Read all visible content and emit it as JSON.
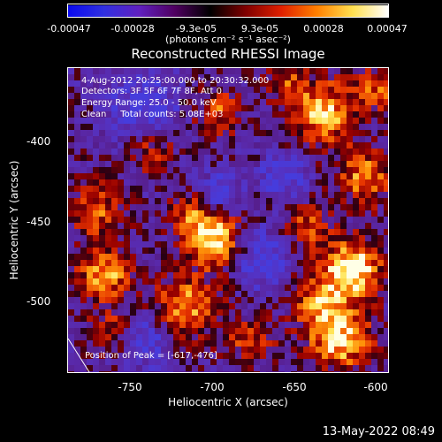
{
  "colorbar": {
    "ticks": [
      "-0.00047",
      "-0.00028",
      "-9.3e-05",
      "9.3e-05",
      "0.00028",
      "0.00047"
    ],
    "unit_label": "(photons cm⁻² s⁻¹ asec⁻²)",
    "gradient": [
      "#0a0af0",
      "#3030e0",
      "#6020c0",
      "#500060",
      "#000000",
      "#800000",
      "#e02000",
      "#ff8000",
      "#ffe050",
      "#ffffff"
    ]
  },
  "info": {
    "line1": "4-Aug-2012 20:25:00.000 to 20:30:32.000",
    "line2": "Detectors: 3F 5F 6F 7F 8F, Att 0",
    "line3": "Energy Range: 25.0 - 50.0 keV",
    "line4": "Clean     Total counts: 5.08E+03"
  },
  "peak_text": "Position of Peak = [-617,-476]",
  "timestamp": "13-May-2022 08:49",
  "chart_data": {
    "type": "heatmap",
    "title": "Reconstructed RHESSI Image",
    "xlabel": "Heliocentric X (arcsec)",
    "ylabel": "Heliocentric Y (arcsec)",
    "xlim": [
      -792,
      -596
    ],
    "ylim": [
      -540,
      -353
    ],
    "x_ticks": [
      "-750",
      "-700",
      "-650",
      "-600"
    ],
    "y_ticks": [
      "-400",
      "-450",
      "-500"
    ],
    "x_tick_values": [
      -750,
      -700,
      -650,
      -600
    ],
    "y_tick_values": [
      -400,
      -450,
      -500
    ],
    "color_range": [
      -0.00047,
      0.00047
    ],
    "peak": [
      -617,
      -476
    ],
    "blobs": [
      {
        "x": -617,
        "y": -476,
        "s": 12,
        "a": 1.0
      },
      {
        "x": -625,
        "y": -520,
        "s": 14,
        "a": 0.85
      },
      {
        "x": -610,
        "y": -420,
        "s": 12,
        "a": 0.7
      },
      {
        "x": -635,
        "y": -380,
        "s": 14,
        "a": 0.8
      },
      {
        "x": -600,
        "y": -365,
        "s": 10,
        "a": 0.6
      },
      {
        "x": -645,
        "y": -450,
        "s": 10,
        "a": 0.55
      },
      {
        "x": -638,
        "y": -495,
        "s": 12,
        "a": 0.65
      },
      {
        "x": -700,
        "y": -460,
        "s": 12,
        "a": 0.85
      },
      {
        "x": -715,
        "y": -445,
        "s": 10,
        "a": 0.6
      },
      {
        "x": -720,
        "y": -500,
        "s": 14,
        "a": 0.75
      },
      {
        "x": -775,
        "y": -440,
        "s": 12,
        "a": 0.55
      },
      {
        "x": -770,
        "y": -480,
        "s": 12,
        "a": 0.75
      },
      {
        "x": -765,
        "y": -515,
        "s": 10,
        "a": 0.5
      },
      {
        "x": -740,
        "y": -405,
        "s": 9,
        "a": 0.5
      },
      {
        "x": -700,
        "y": -380,
        "s": 10,
        "a": 0.55
      },
      {
        "x": -660,
        "y": -362,
        "s": 9,
        "a": 0.45
      },
      {
        "x": -680,
        "y": -520,
        "s": 10,
        "a": 0.5
      },
      {
        "x": -700,
        "y": -430,
        "s": 8,
        "a": -0.6
      },
      {
        "x": -745,
        "y": -375,
        "s": 14,
        "a": -0.55
      },
      {
        "x": -675,
        "y": -470,
        "s": 12,
        "a": -0.6
      },
      {
        "x": -745,
        "y": -520,
        "s": 12,
        "a": -0.5
      },
      {
        "x": -660,
        "y": -420,
        "s": 10,
        "a": -0.5
      }
    ]
  }
}
